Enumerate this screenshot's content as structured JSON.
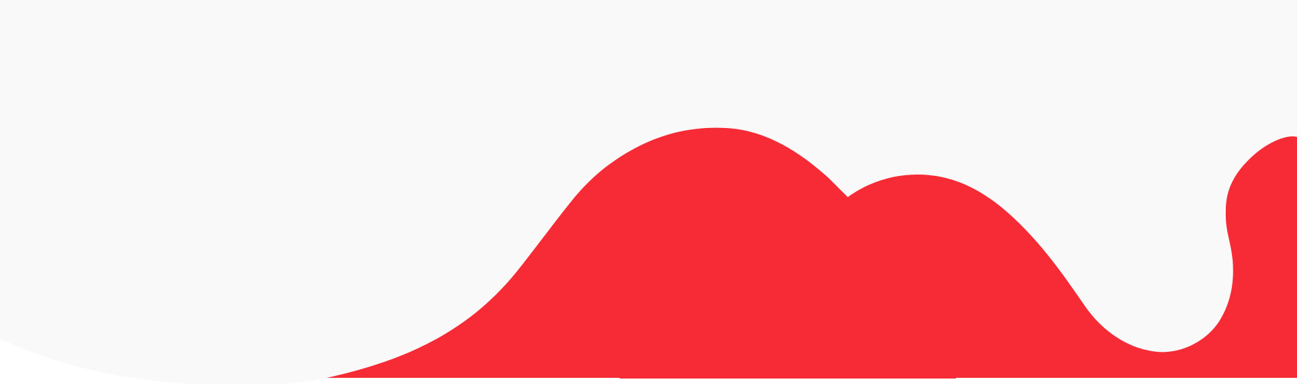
{
  "colors": {
    "background": "#ffffff",
    "light_wave": "#f9f9f9",
    "red_wave": "#f62b36"
  },
  "shapes": [
    {
      "name": "light-gray-wave-shape",
      "color_key": "light_wave"
    },
    {
      "name": "red-wave-shape",
      "color_key": "red_wave"
    }
  ]
}
